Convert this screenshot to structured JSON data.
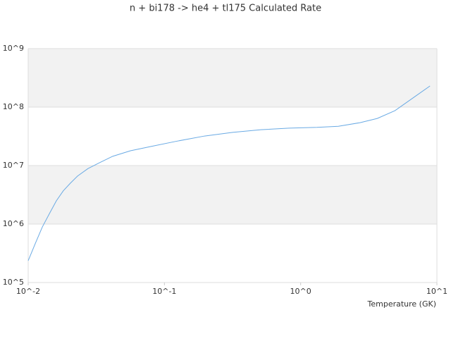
{
  "chart_data": {
    "type": "line",
    "title": "n + bi178 -> he4 + tl175 Calculated Rate",
    "x_label": "Temperature (GK)",
    "x": [
      0.01,
      0.0113,
      0.0127,
      0.0143,
      0.0161,
      0.0181,
      0.0204,
      0.023,
      0.0275,
      0.0329,
      0.0417,
      0.0563,
      0.0803,
      0.122,
      0.197,
      0.317,
      0.51,
      0.821,
      1.32,
      1.89,
      2.71,
      3.65,
      4.92,
      7.0,
      8.9
    ],
    "series": [
      {
        "color": "#6aaae4",
        "values": [
          236000,
          470000,
          890000,
          1500000,
          2500000,
          3700000,
          5000000,
          6600000,
          8900000,
          11000000,
          14400000,
          17900000,
          21300000,
          26000000,
          32000000,
          37000000,
          41000000,
          43600000,
          45000000,
          47000000,
          54000000,
          64000000,
          87000000,
          155000000,
          230000000
        ]
      }
    ],
    "xscale": "log",
    "yscale": "log",
    "xlim": [
      0.01,
      10
    ],
    "ylim": [
      100000,
      1000000000
    ],
    "xticks": [
      {
        "value": 0.01,
        "label": "10^-2"
      },
      {
        "value": 0.1,
        "label": "10^-1"
      },
      {
        "value": 1,
        "label": "10^0"
      },
      {
        "value": 10,
        "label": "10^1"
      }
    ],
    "yticks": [
      {
        "value": 100000,
        "label": "10^5"
      },
      {
        "value": 1000000,
        "label": "10^6"
      },
      {
        "value": 10000000,
        "label": "10^7"
      },
      {
        "value": 100000000,
        "label": "10^8"
      },
      {
        "value": 1000000000,
        "label": "10^9"
      }
    ],
    "grid": true,
    "band_color": "#f2f2f2"
  }
}
